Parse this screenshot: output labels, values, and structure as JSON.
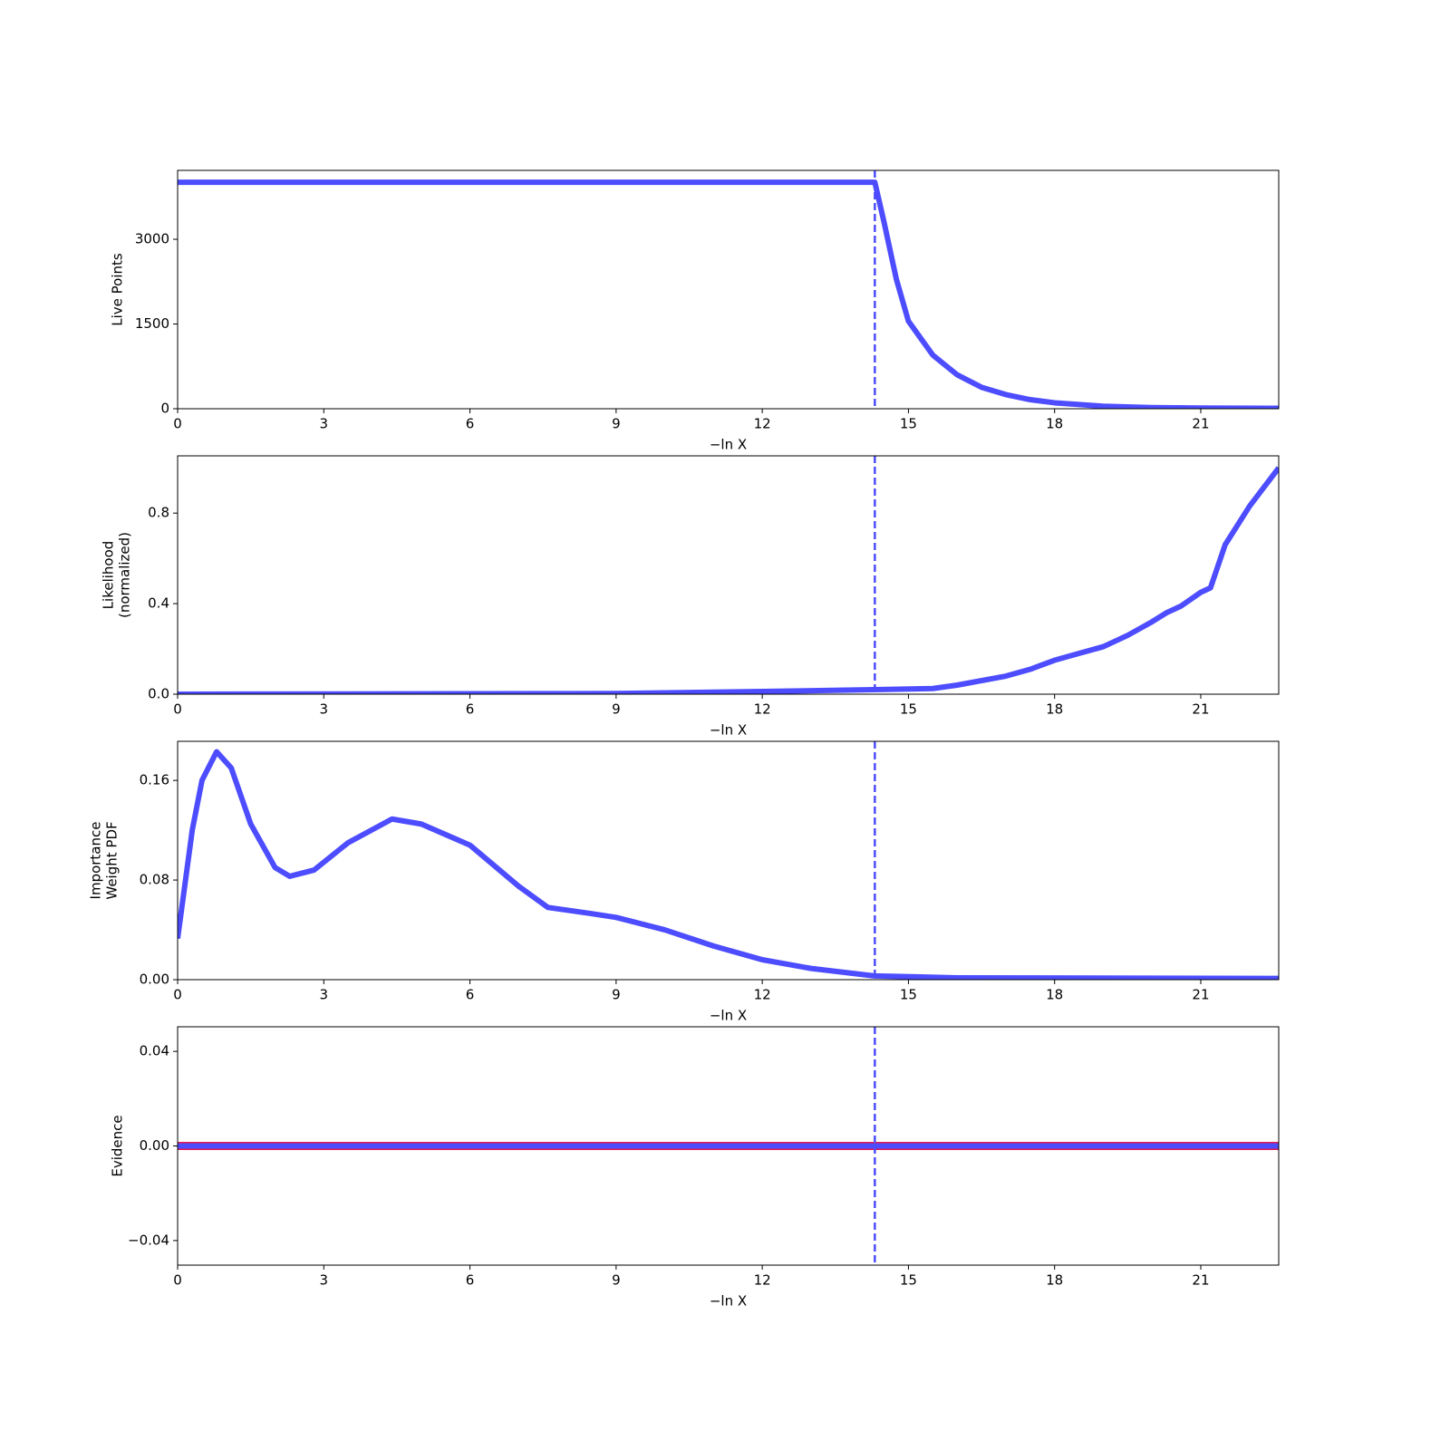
{
  "chart_data": [
    {
      "type": "line",
      "ylabel": [
        "Live Points"
      ],
      "xlabel": "−ln X",
      "x": [
        0,
        14.31,
        14.5,
        14.75,
        15,
        15.5,
        16,
        16.5,
        17,
        17.5,
        18,
        19,
        20,
        21,
        22.6
      ],
      "series": [
        {
          "color": "#4d4dff",
          "values": [
            4010,
            4010,
            3300,
            2300,
            1550,
            950,
            600,
            380,
            250,
            160,
            105,
            45,
            20,
            12,
            8
          ]
        }
      ],
      "xlim": [
        0,
        22.6
      ],
      "xticks": [
        0,
        3,
        6,
        9,
        12,
        15,
        18,
        21
      ],
      "ylim": [
        0,
        4220
      ],
      "yticks": [
        0,
        1500,
        3000
      ],
      "vline": 14.31,
      "vline_color": "#4d4dff"
    },
    {
      "type": "line",
      "ylabel": [
        "Likelihood",
        "(normalized)"
      ],
      "xlabel": "−ln X",
      "x": [
        0,
        9,
        12,
        14.3,
        15.5,
        16,
        17,
        17.5,
        18,
        18.5,
        19,
        19.5,
        20,
        20.3,
        20.6,
        21,
        21.2,
        21.5,
        22,
        22.6
      ],
      "series": [
        {
          "color": "#4d4dff",
          "values": [
            0,
            0.003,
            0.012,
            0.02,
            0.025,
            0.04,
            0.08,
            0.11,
            0.15,
            0.18,
            0.21,
            0.26,
            0.32,
            0.36,
            0.39,
            0.45,
            0.47,
            0.66,
            0.83,
            1.0
          ]
        }
      ],
      "xlim": [
        0,
        22.6
      ],
      "xticks": [
        0,
        3,
        6,
        9,
        12,
        15,
        18,
        21
      ],
      "ylim": [
        0,
        1.053
      ],
      "yticks": [
        {
          "value": 0,
          "label": "0.0"
        },
        0.4,
        0.8
      ],
      "vline": 14.31,
      "vline_color": "#4d4dff"
    },
    {
      "type": "line",
      "ylabel": [
        "Importance",
        "Weight PDF"
      ],
      "xlabel": "−ln X",
      "x": [
        0,
        0.3,
        0.5,
        0.8,
        1.1,
        1.5,
        2,
        2.3,
        2.8,
        3.5,
        4.4,
        5,
        6,
        7,
        7.6,
        8.5,
        9,
        10,
        11,
        12,
        13,
        14.3,
        16,
        22.6
      ],
      "series": [
        {
          "color": "#4d4dff",
          "values": [
            0.033,
            0.12,
            0.16,
            0.183,
            0.17,
            0.125,
            0.09,
            0.083,
            0.088,
            0.11,
            0.129,
            0.125,
            0.108,
            0.075,
            0.058,
            0.053,
            0.05,
            0.04,
            0.027,
            0.016,
            0.009,
            0.003,
            0.0015,
            0.001
          ]
        }
      ],
      "xlim": [
        0,
        22.6
      ],
      "xticks": [
        0,
        3,
        6,
        9,
        12,
        15,
        18,
        21
      ],
      "ylim": [
        0,
        0.1914
      ],
      "yticks": [
        {
          "value": 0,
          "label": "0.00"
        },
        {
          "value": 0.08,
          "label": "0.08"
        },
        0.16
      ],
      "vline": 14.31,
      "vline_color": "#4d4dff"
    },
    {
      "type": "line",
      "ylabel": [
        "Evidence"
      ],
      "xlabel": "−ln X",
      "x": [
        0,
        22.6
      ],
      "series": [
        {
          "color": "#e8174c",
          "values": [
            0,
            0
          ]
        },
        {
          "color": "#4d4dff",
          "values": [
            0,
            0
          ]
        }
      ],
      "xlim": [
        0,
        22.6
      ],
      "xticks": [
        0,
        3,
        6,
        9,
        12,
        15,
        18,
        21
      ],
      "ylim": [
        -0.0504,
        0.0504
      ],
      "yticks": [
        {
          "value": -0.04,
          "label": "−0.04"
        },
        {
          "value": 0,
          "label": "0.00"
        },
        0.04
      ],
      "vline": 14.31,
      "vline_color": "#4d4dff"
    }
  ]
}
